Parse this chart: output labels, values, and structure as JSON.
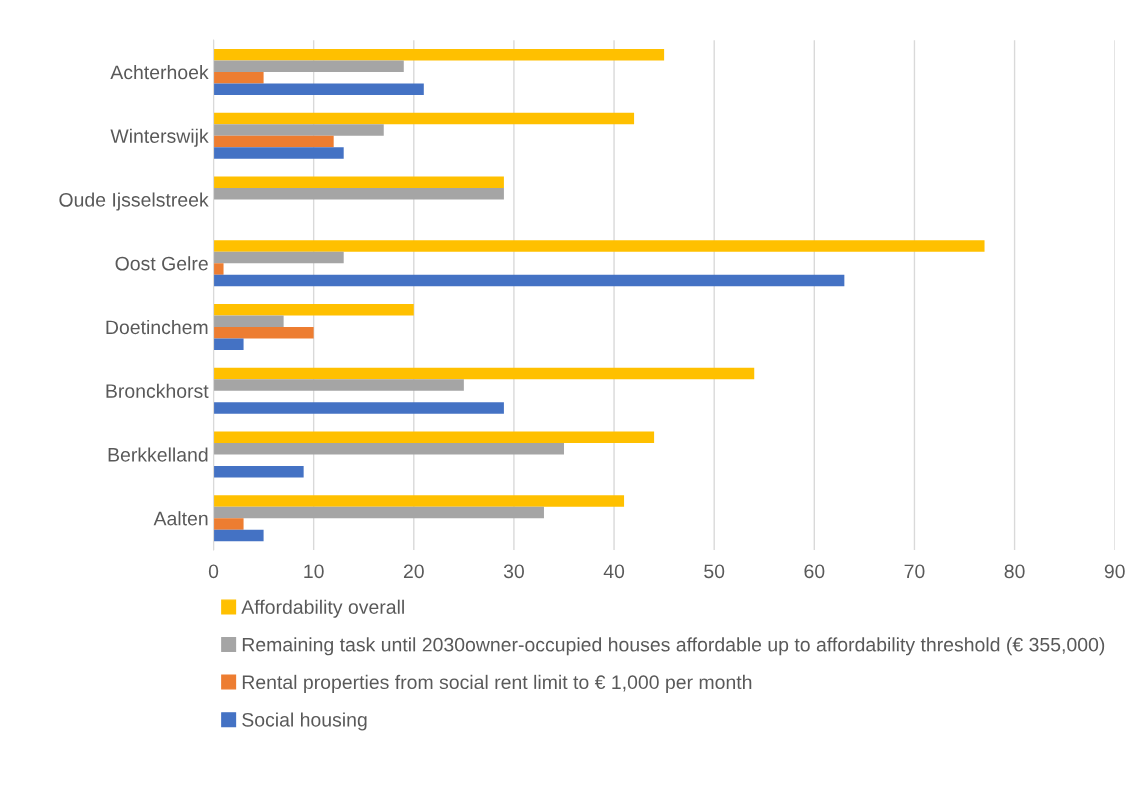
{
  "chart_data": {
    "type": "bar",
    "orientation": "horizontal",
    "categories": [
      "Achterhoek",
      "Winterswijk",
      "Oude Ijsselstreek",
      "Oost Gelre",
      "Doetinchem",
      "Bronckhorst",
      "Berkkelland",
      "Aalten"
    ],
    "series": [
      {
        "name": "Affordability overall",
        "color": "#ffc000",
        "values": [
          45,
          42,
          29,
          77,
          20,
          54,
          44,
          41
        ]
      },
      {
        "name": "Remaining task until 2030owner-occupied houses affordable up to affordability threshold (€ 355,000)",
        "color": "#a5a5a5",
        "values": [
          19,
          17,
          29,
          13,
          7,
          25,
          35,
          33
        ]
      },
      {
        "name": "Rental properties from social rent limit to € 1,000 per month",
        "color": "#ed7d31",
        "values": [
          5,
          12,
          null,
          1,
          10,
          null,
          null,
          3
        ]
      },
      {
        "name": "Social housing",
        "color": "#4472c4",
        "values": [
          21,
          13,
          null,
          63,
          3,
          29,
          9,
          5
        ]
      }
    ],
    "xlim": [
      0,
      90
    ],
    "xticks": [
      0,
      10,
      20,
      30,
      40,
      50,
      60,
      70,
      80,
      90
    ],
    "grid": "x",
    "legend": "bottom"
  }
}
